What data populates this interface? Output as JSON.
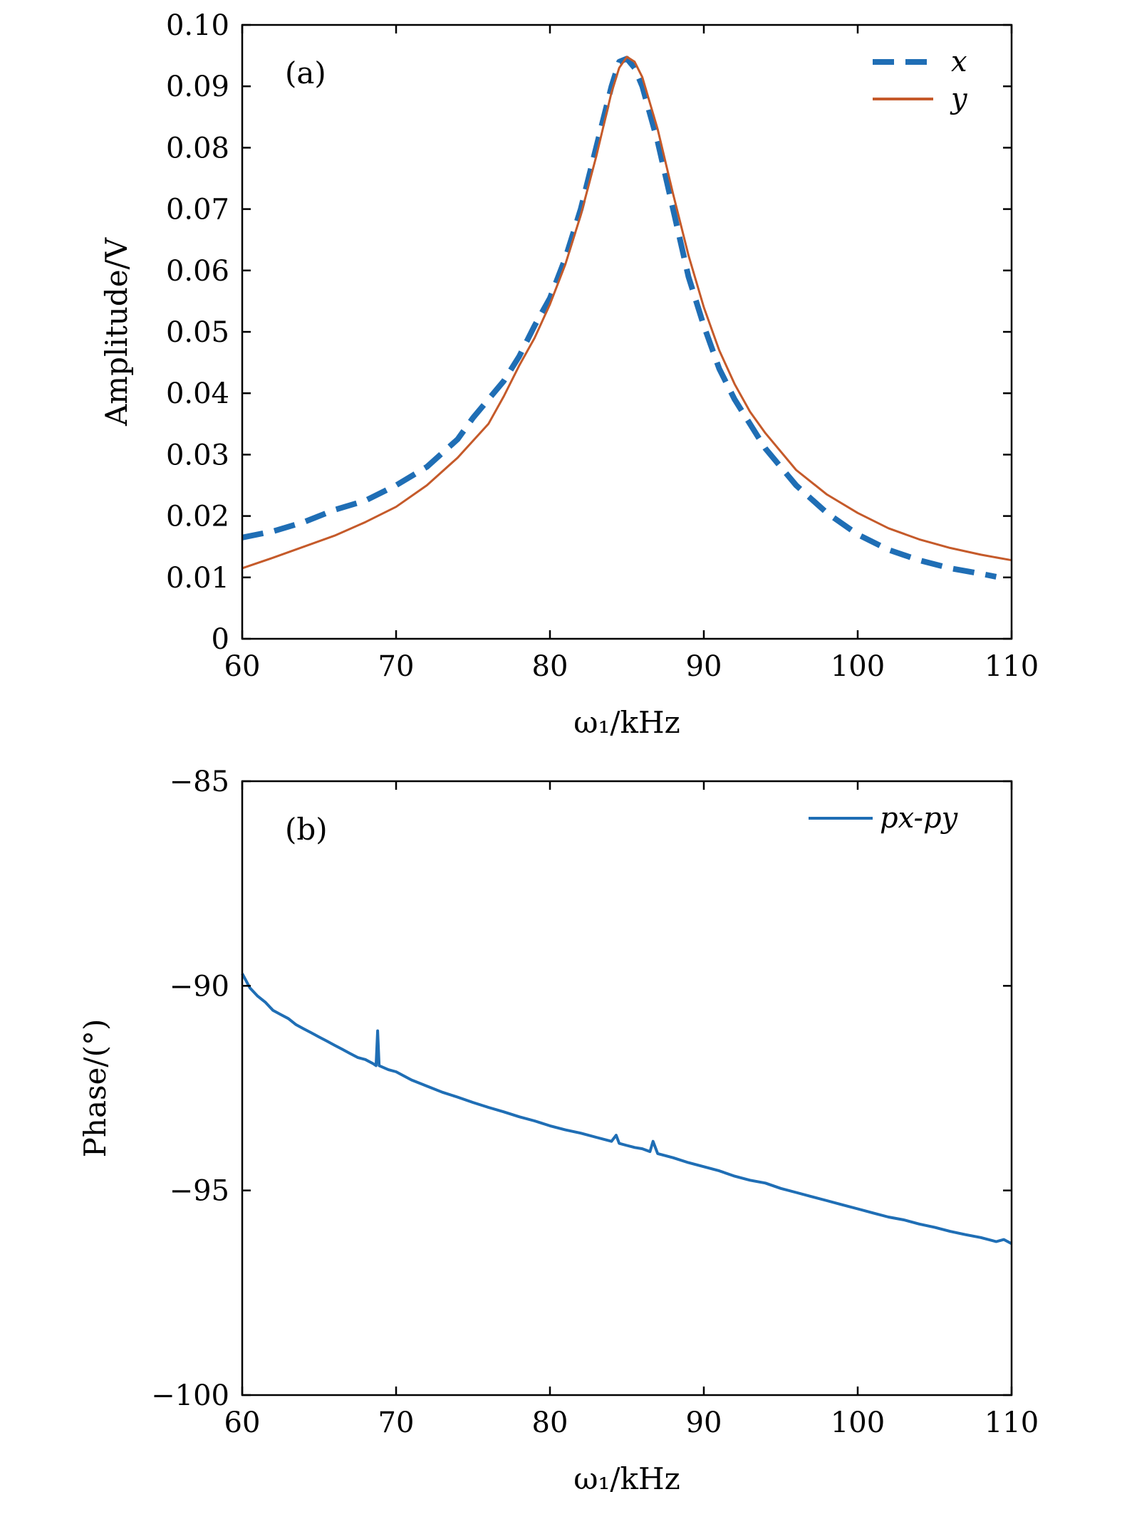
{
  "chart_data": [
    {
      "type": "line",
      "panel_label": "(a)",
      "xlabel": "ω₁/kHz",
      "ylabel": "Amplitude/V",
      "xlim": [
        60,
        110
      ],
      "ylim": [
        0,
        0.1
      ],
      "xticks": [
        60,
        70,
        80,
        90,
        100,
        110
      ],
      "xtick_labels": [
        "60",
        "70",
        "80",
        "90",
        "100",
        "110"
      ],
      "yticks": [
        0,
        0.01,
        0.02,
        0.03,
        0.04,
        0.05,
        0.06,
        0.07,
        0.08,
        0.09,
        0.1
      ],
      "ytick_labels": [
        "0",
        "0.01",
        "0.02",
        "0.03",
        "0.04",
        "0.05",
        "0.06",
        "0.07",
        "0.08",
        "0.09",
        "0.10"
      ],
      "grid": false,
      "legend_position": "top-right",
      "series": [
        {
          "name": "x",
          "color": "#1f6eb5",
          "style": "dashed",
          "x": [
            60,
            62,
            64,
            66,
            68,
            70,
            72,
            74,
            75,
            76,
            77,
            78,
            79,
            80,
            81,
            82,
            83,
            84,
            84.5,
            85,
            85.5,
            86,
            87,
            88,
            89,
            90,
            91,
            92,
            93,
            94,
            96,
            98,
            100,
            102,
            104,
            106,
            108,
            109
          ],
          "y": [
            0.0165,
            0.0175,
            0.019,
            0.021,
            0.0225,
            0.025,
            0.028,
            0.0325,
            0.036,
            0.039,
            0.042,
            0.046,
            0.051,
            0.0555,
            0.062,
            0.07,
            0.08,
            0.09,
            0.094,
            0.0945,
            0.093,
            0.09,
            0.081,
            0.07,
            0.059,
            0.051,
            0.044,
            0.039,
            0.035,
            0.031,
            0.025,
            0.0205,
            0.017,
            0.0145,
            0.0128,
            0.0115,
            0.0106,
            0.0101
          ]
        },
        {
          "name": "y",
          "color": "#c55a2a",
          "style": "solid",
          "x": [
            60,
            62,
            64,
            66,
            68,
            70,
            72,
            74,
            76,
            77,
            78,
            79,
            80,
            81,
            82,
            83,
            84,
            84.5,
            85,
            85.5,
            86,
            87,
            88,
            89,
            90,
            91,
            92,
            93,
            94,
            96,
            98,
            100,
            102,
            104,
            106,
            108,
            110
          ],
          "y": [
            0.0115,
            0.0132,
            0.015,
            0.0168,
            0.019,
            0.0215,
            0.025,
            0.0295,
            0.035,
            0.0395,
            0.0445,
            0.049,
            0.0545,
            0.061,
            0.069,
            0.0785,
            0.089,
            0.093,
            0.0948,
            0.094,
            0.0915,
            0.083,
            0.0725,
            0.0625,
            0.054,
            0.047,
            0.0415,
            0.037,
            0.0335,
            0.0275,
            0.0235,
            0.0205,
            0.018,
            0.0162,
            0.0148,
            0.0137,
            0.0128
          ]
        }
      ]
    },
    {
      "type": "line",
      "panel_label": "(b)",
      "xlabel": "ω₁/kHz",
      "ylabel": "Phase/(°)",
      "xlim": [
        60,
        110
      ],
      "ylim": [
        -100,
        -85
      ],
      "xticks": [
        60,
        70,
        80,
        90,
        100,
        110
      ],
      "xtick_labels": [
        "60",
        "70",
        "80",
        "90",
        "100",
        "110"
      ],
      "yticks": [
        -100,
        -95,
        -90,
        -85
      ],
      "ytick_labels": [
        "−100",
        "−95",
        "−90",
        "−85"
      ],
      "grid": false,
      "legend_position": "top-right",
      "series": [
        {
          "name": "px-py",
          "color": "#1f6eb5",
          "style": "solid",
          "x": [
            60,
            60.5,
            61,
            61.5,
            62,
            62.5,
            63,
            63.5,
            64,
            64.5,
            65,
            65.5,
            66,
            66.5,
            67,
            67.5,
            68,
            68.5,
            68.7,
            68.8,
            68.9,
            69.5,
            70,
            71,
            72,
            73,
            74,
            75,
            76,
            77,
            78,
            79,
            80,
            81,
            82,
            83,
            84,
            84.3,
            84.5,
            85,
            85.5,
            86,
            86.5,
            86.7,
            87,
            88,
            89,
            90,
            91,
            92,
            93,
            94,
            95,
            96,
            97,
            98,
            99,
            100,
            101,
            102,
            103,
            104,
            105,
            106,
            107,
            108,
            109,
            109.5,
            110
          ],
          "y": [
            -89.7,
            -90.05,
            -90.25,
            -90.4,
            -90.6,
            -90.7,
            -90.8,
            -90.95,
            -91.05,
            -91.15,
            -91.25,
            -91.35,
            -91.45,
            -91.55,
            -91.65,
            -91.75,
            -91.8,
            -91.9,
            -91.95,
            -91.1,
            -91.95,
            -92.05,
            -92.1,
            -92.3,
            -92.45,
            -92.6,
            -92.72,
            -92.85,
            -92.97,
            -93.08,
            -93.2,
            -93.3,
            -93.42,
            -93.52,
            -93.6,
            -93.7,
            -93.8,
            -93.65,
            -93.85,
            -93.9,
            -93.95,
            -93.98,
            -94.05,
            -93.8,
            -94.1,
            -94.2,
            -94.32,
            -94.42,
            -94.52,
            -94.65,
            -94.75,
            -94.82,
            -94.95,
            -95.05,
            -95.15,
            -95.25,
            -95.35,
            -95.45,
            -95.55,
            -95.65,
            -95.72,
            -95.82,
            -95.9,
            -96.0,
            -96.08,
            -96.15,
            -96.25,
            -96.2,
            -96.3
          ]
        }
      ]
    }
  ]
}
